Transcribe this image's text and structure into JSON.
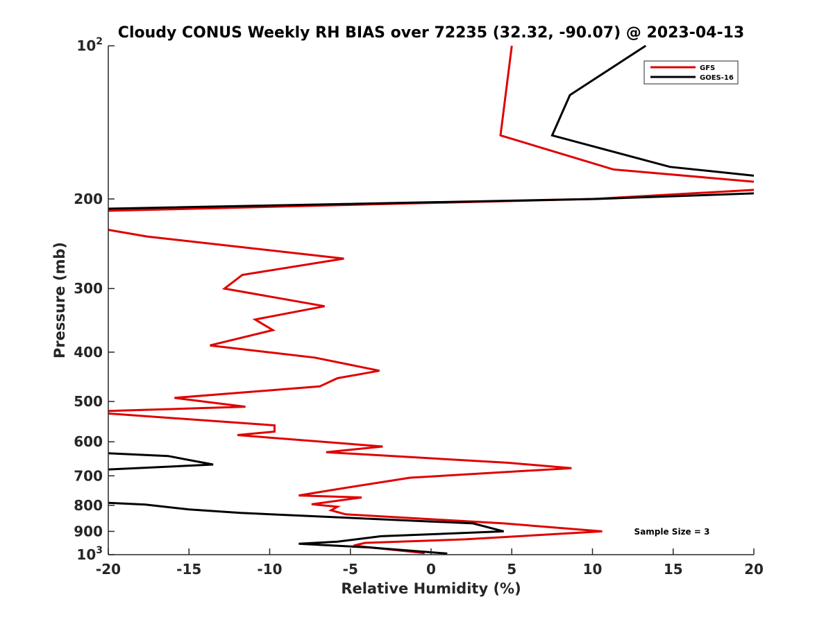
{
  "chart_data": {
    "type": "line",
    "title": "Cloudy CONUS Weekly RH BIAS over 72235 (32.32, -90.07) @ 2023-04-13",
    "xlabel": "Relative Humidity (%)",
    "ylabel": "Pressure (mb)",
    "xlim": [
      -20,
      20
    ],
    "ylim": [
      100,
      1000
    ],
    "yscale": "log",
    "y_reversed": true,
    "grid": false,
    "legend_position": "top-right",
    "x_ticks": [
      "-20",
      "-15",
      "-10",
      "-5",
      "0",
      "5",
      "10",
      "15",
      "20"
    ],
    "y_ticks": [
      {
        "value": 100,
        "base": "10",
        "exp": "2"
      },
      {
        "value": 200,
        "label": "200"
      },
      {
        "value": 300,
        "label": "300"
      },
      {
        "value": 400,
        "label": "400"
      },
      {
        "value": 500,
        "label": "500"
      },
      {
        "value": 600,
        "label": "600"
      },
      {
        "value": 700,
        "label": "700"
      },
      {
        "value": 800,
        "label": "800"
      },
      {
        "value": 900,
        "label": "900"
      },
      {
        "value": 1000,
        "base": "10",
        "exp": "3"
      }
    ],
    "annotation": "Sample Size = 3",
    "series": [
      {
        "name": "GFS",
        "color": "#e00000",
        "points": [
          [
            5.0,
            100
          ],
          [
            4.3,
            150
          ],
          [
            11.3,
            175
          ],
          [
            20.0,
            185
          ],
          null,
          [
            20.0,
            192
          ],
          [
            10.0,
            200
          ],
          [
            -20.0,
            211
          ],
          null,
          [
            -20.0,
            230
          ],
          [
            -17.6,
            237
          ],
          [
            -5.4,
            262
          ],
          [
            -11.7,
            282
          ],
          [
            -12.8,
            300
          ],
          [
            -6.6,
            325
          ],
          [
            -10.9,
            345
          ],
          [
            -9.8,
            362
          ],
          [
            -13.7,
            388
          ],
          [
            -7.2,
            410
          ],
          [
            -3.2,
            435
          ],
          [
            -5.8,
            450
          ],
          [
            -6.9,
            467
          ],
          [
            -15.9,
            492
          ],
          [
            -11.5,
            512
          ],
          [
            -20.0,
            522
          ],
          null,
          [
            -20.0,
            528
          ],
          [
            -9.7,
            557
          ],
          [
            -9.7,
            573
          ],
          [
            -12.0,
            582
          ],
          [
            -3.0,
            613
          ],
          [
            -6.5,
            629
          ],
          [
            4.8,
            660
          ],
          [
            8.7,
            676
          ],
          [
            -1.3,
            706
          ],
          [
            -5.3,
            739
          ],
          [
            -8.2,
            765
          ],
          [
            -4.3,
            772
          ],
          [
            -7.4,
            796
          ],
          [
            -5.8,
            805
          ],
          [
            -6.2,
            818
          ],
          [
            -5.3,
            833
          ],
          [
            4.5,
            868
          ],
          [
            10.6,
            900
          ],
          [
            2.1,
            933
          ],
          [
            -4.1,
            948
          ],
          [
            -4.8,
            960
          ],
          [
            -0.4,
            993
          ]
        ]
      },
      {
        "name": "GOES-16",
        "color": "#000000",
        "points": [
          [
            13.3,
            100
          ],
          [
            8.6,
            125
          ],
          [
            7.5,
            150
          ],
          [
            14.8,
            173
          ],
          [
            20.0,
            180
          ],
          null,
          [
            20.0,
            195
          ],
          [
            10.2,
            200
          ],
          [
            -20.0,
            209
          ],
          null,
          [
            -20.0,
            632
          ],
          [
            -16.3,
            640
          ],
          [
            -13.5,
            665
          ],
          [
            -20.0,
            680
          ],
          null,
          [
            -20.0,
            791
          ],
          [
            -17.7,
            797
          ],
          [
            -15.0,
            815
          ],
          [
            -11.8,
            828
          ],
          [
            2.6,
            868
          ],
          [
            4.5,
            900
          ],
          [
            -3.1,
            920
          ],
          [
            -5.8,
            943
          ],
          [
            -8.2,
            952
          ],
          [
            -3.8,
            968
          ],
          [
            1.0,
            995
          ]
        ]
      }
    ]
  }
}
